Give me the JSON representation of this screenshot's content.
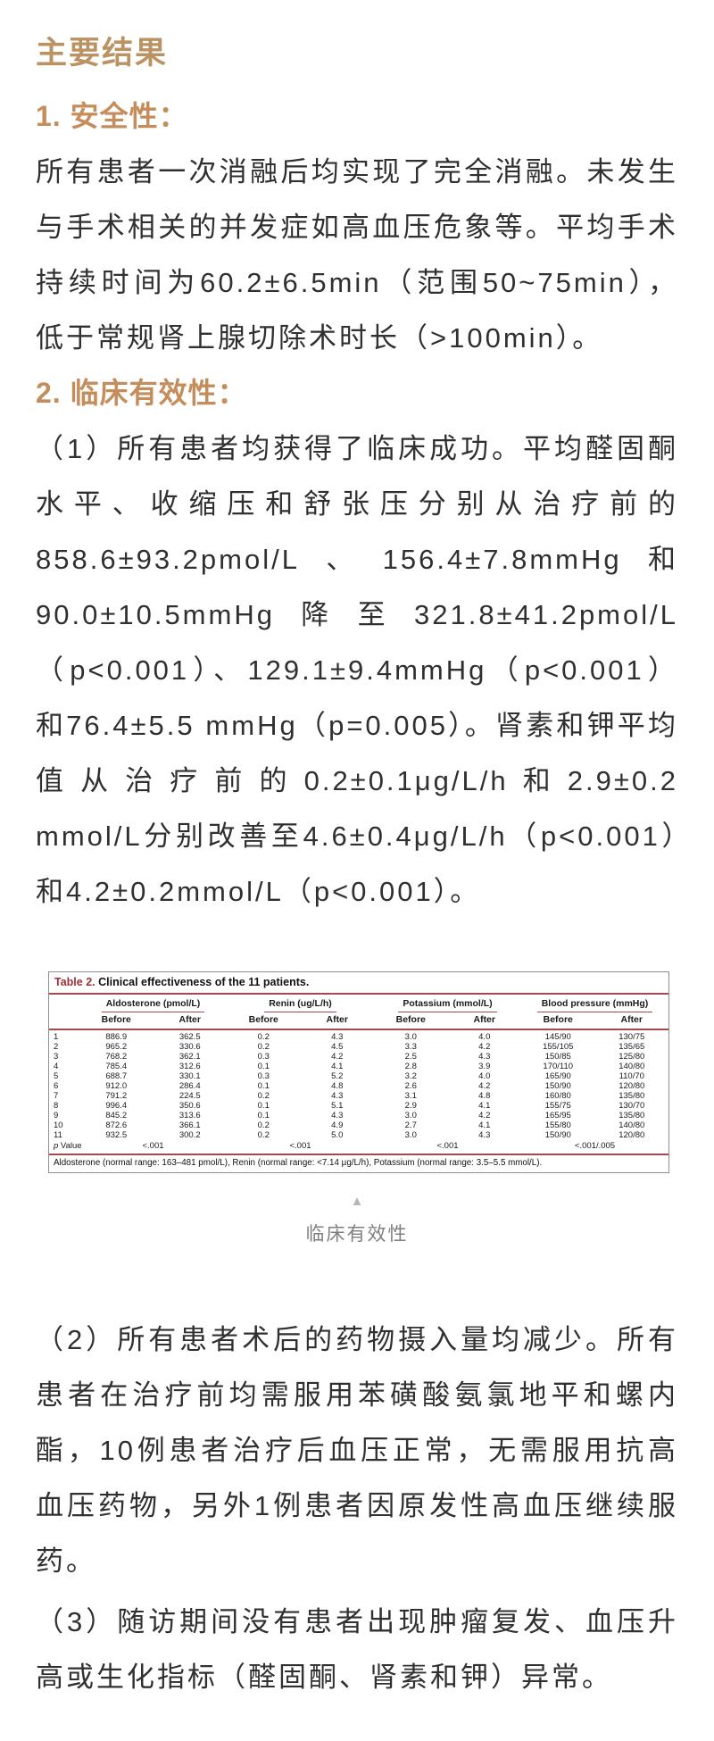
{
  "page": {
    "title": "主要结果"
  },
  "sections": {
    "safety": {
      "heading": "1. 安全性：",
      "paragraph": "所有患者一次消融后均实现了完全消融。未发生与手术相关的并发症如高血压危象等。平均手术持续时间为60.2±6.5min（范围50~75min），低于常规肾上腺切除术时长（>100min）。"
    },
    "effectiveness": {
      "heading": "2. 临床有效性：",
      "paragraph1": "（1）所有患者均获得了临床成功。平均醛固酮水平、收缩压和舒张压分别从治疗前的858.6±93.2pmol/L、156.4±7.8mmHg和90.0±10.5mmHg降至321.8±41.2pmol/L（p<0.001）、129.1±9.4mmHg（p<0.001）和76.4±5.5 mmHg（p=0.005）。肾素和钾平均值从治疗前的0.2±0.1μg/L/h和2.9±0.2 mmol/L分别改善至4.6±0.4μg/L/h（p<0.001）和4.2±0.2mmol/L（p<0.001）。",
      "paragraph2": "（2）所有患者术后的药物摄入量均减少。所有患者在治疗前均需服用苯磺酸氨氯地平和螺内酯，10例患者治疗后血压正常，无需服用抗高血压药物，另外1例患者因原发性高血压继续服药。",
      "paragraph3": "（3）随访期间没有患者出现肿瘤复发、血压升高或生化指标（醛固酮、肾素和钾）异常。"
    }
  },
  "figure": {
    "marker_icon": "▲",
    "caption": "临床有效性"
  },
  "table": {
    "title_label": "Table 2.",
    "title_text": "Clinical effectiveness of the 11 patients.",
    "column_groups": [
      "Aldosterone (pmol/L)",
      "Renin (ug/L/h)",
      "Potassium (mmol/L)",
      "Blood pressure (mmHg)"
    ],
    "subheaders": [
      "Before",
      "After"
    ],
    "rows": [
      [
        "1",
        "886.9",
        "362.5",
        "0.2",
        "4.3",
        "3.0",
        "4.0",
        "145/90",
        "130/75"
      ],
      [
        "2",
        "965.2",
        "330.6",
        "0.2",
        "4.5",
        "3.3",
        "4.2",
        "155/105",
        "135/65"
      ],
      [
        "3",
        "768.2",
        "362.1",
        "0.3",
        "4.2",
        "2.5",
        "4.3",
        "150/85",
        "125/80"
      ],
      [
        "4",
        "785.4",
        "312.6",
        "0.1",
        "4.1",
        "2.8",
        "3.9",
        "170/110",
        "140/80"
      ],
      [
        "5",
        "688.7",
        "330.1",
        "0.3",
        "5.2",
        "3.2",
        "4.0",
        "165/90",
        "110/70"
      ],
      [
        "6",
        "912.0",
        "286.4",
        "0.1",
        "4.8",
        "2.6",
        "4.2",
        "150/90",
        "120/80"
      ],
      [
        "7",
        "791.2",
        "224.5",
        "0.2",
        "4.3",
        "3.1",
        "4.8",
        "160/80",
        "135/80"
      ],
      [
        "8",
        "996.4",
        "350.6",
        "0.1",
        "5.1",
        "2.9",
        "4.1",
        "155/75",
        "130/70"
      ],
      [
        "9",
        "845.2",
        "313.6",
        "0.1",
        "4.3",
        "3.0",
        "4.2",
        "165/95",
        "135/80"
      ],
      [
        "10",
        "872.6",
        "366.1",
        "0.2",
        "4.9",
        "2.7",
        "4.1",
        "155/80",
        "140/80"
      ],
      [
        "11",
        "932.5",
        "300.2",
        "0.2",
        "5.0",
        "3.0",
        "4.3",
        "150/90",
        "120/80"
      ]
    ],
    "p_value_row": {
      "label": "p Value",
      "values": [
        "<.001",
        "<.001",
        "<.001",
        "<.001/.005"
      ]
    },
    "footnote": "Aldosterone (normal range: 163–481 pmol/L), Renin (normal range: <7.14 µg/L/h), Potassium (normal range: 3.5–5.5 mmol/L)."
  },
  "colors": {
    "title_gold": "#bb9262",
    "heading_tan": "#c48d5b",
    "table_red": "#a5494f",
    "table_title_red": "#9c2f33",
    "body_text": "#303030",
    "caption_gray": "#7f7f7f",
    "triangle_gray": "#b5b5b5"
  }
}
